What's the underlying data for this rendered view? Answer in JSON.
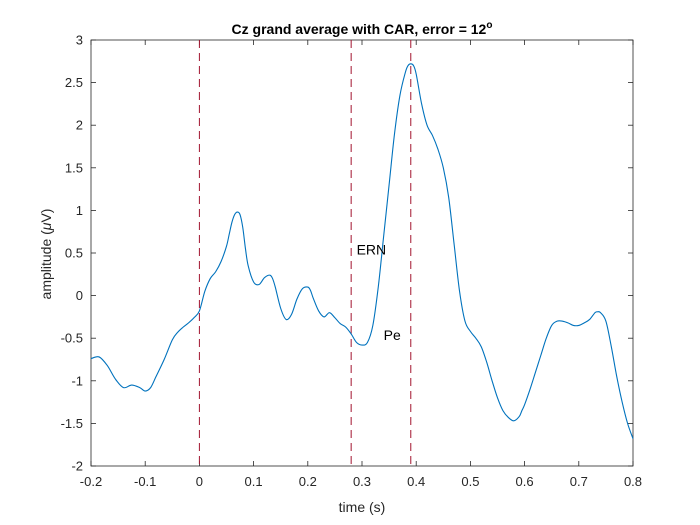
{
  "chart_data": {
    "type": "line",
    "title": "Cz grand average with CAR, error = 12",
    "title_superscript": "o",
    "xlabel": "time (s)",
    "ylabel_prefix": "amplitude (",
    "ylabel_mu": "μ",
    "ylabel_suffix": "V)",
    "xlim": [
      -0.2,
      0.8
    ],
    "ylim": [
      -2,
      3
    ],
    "xticks": [
      -0.2,
      -0.1,
      0,
      0.1,
      0.2,
      0.3,
      0.4,
      0.5,
      0.6,
      0.7,
      0.8
    ],
    "xtick_labels": [
      "-0.2",
      "-0.1",
      "0",
      "0.1",
      "0.2",
      "0.3",
      "0.4",
      "0.5",
      "0.6",
      "0.7",
      "0.8"
    ],
    "yticks": [
      -2,
      -1.5,
      -1,
      -0.5,
      0,
      0.5,
      1,
      1.5,
      2,
      2.5,
      3
    ],
    "ytick_labels": [
      "-2",
      "-1.5",
      "-1",
      "-0.5",
      "0",
      "0.5",
      "1",
      "1.5",
      "2",
      "2.5",
      "3"
    ],
    "grid": false,
    "line_color": "#0072BD",
    "marker_line_color": "#A2142F",
    "vertical_markers": [
      0,
      0.28,
      0.39
    ],
    "annotations": [
      {
        "text": "ERN",
        "x": 0.29,
        "y": 0.48
      },
      {
        "text": "Pe",
        "x": 0.34,
        "y": -0.52
      }
    ],
    "series": [
      {
        "x": [
          -0.2,
          -0.185,
          -0.17,
          -0.155,
          -0.14,
          -0.125,
          -0.11,
          -0.1,
          -0.09,
          -0.08,
          -0.065,
          -0.05,
          -0.04,
          -0.03,
          -0.02,
          -0.01,
          0.0,
          0.01,
          0.02,
          0.03,
          0.04,
          0.05,
          0.055,
          0.06,
          0.065,
          0.07,
          0.075,
          0.08,
          0.085,
          0.09,
          0.1,
          0.11,
          0.12,
          0.13,
          0.135,
          0.14,
          0.15,
          0.16,
          0.17,
          0.18,
          0.19,
          0.2,
          0.205,
          0.21,
          0.22,
          0.23,
          0.24,
          0.25,
          0.26,
          0.27,
          0.28,
          0.29,
          0.3,
          0.31,
          0.32,
          0.33,
          0.34,
          0.35,
          0.36,
          0.37,
          0.38,
          0.385,
          0.39,
          0.395,
          0.4,
          0.41,
          0.42,
          0.43,
          0.44,
          0.45,
          0.46,
          0.47,
          0.48,
          0.49,
          0.5,
          0.51,
          0.52,
          0.53,
          0.54,
          0.55,
          0.56,
          0.57,
          0.58,
          0.59,
          0.595,
          0.6,
          0.61,
          0.62,
          0.63,
          0.64,
          0.65,
          0.66,
          0.67,
          0.68,
          0.69,
          0.7,
          0.71,
          0.72,
          0.73,
          0.735,
          0.74,
          0.75,
          0.76,
          0.77,
          0.78,
          0.79,
          0.8
        ],
        "y": [
          -0.74,
          -0.72,
          -0.82,
          -0.98,
          -1.08,
          -1.05,
          -1.08,
          -1.12,
          -1.08,
          -0.95,
          -0.75,
          -0.52,
          -0.43,
          -0.37,
          -0.32,
          -0.26,
          -0.18,
          0.05,
          0.2,
          0.28,
          0.4,
          0.58,
          0.72,
          0.86,
          0.95,
          0.98,
          0.95,
          0.8,
          0.55,
          0.35,
          0.16,
          0.13,
          0.21,
          0.24,
          0.2,
          0.1,
          -0.15,
          -0.28,
          -0.22,
          -0.04,
          0.08,
          0.1,
          0.06,
          -0.03,
          -0.18,
          -0.25,
          -0.2,
          -0.26,
          -0.33,
          -0.37,
          -0.45,
          -0.55,
          -0.58,
          -0.55,
          -0.35,
          0.1,
          0.7,
          1.3,
          1.9,
          2.35,
          2.62,
          2.7,
          2.72,
          2.7,
          2.6,
          2.25,
          2.0,
          1.88,
          1.72,
          1.5,
          1.15,
          0.6,
          0.05,
          -0.3,
          -0.42,
          -0.5,
          -0.6,
          -0.78,
          -1.0,
          -1.2,
          -1.35,
          -1.43,
          -1.47,
          -1.42,
          -1.35,
          -1.28,
          -1.1,
          -0.9,
          -0.7,
          -0.5,
          -0.35,
          -0.3,
          -0.3,
          -0.32,
          -0.35,
          -0.35,
          -0.32,
          -0.28,
          -0.2,
          -0.19,
          -0.2,
          -0.3,
          -0.6,
          -0.95,
          -1.25,
          -1.5,
          -1.68
        ]
      }
    ]
  }
}
